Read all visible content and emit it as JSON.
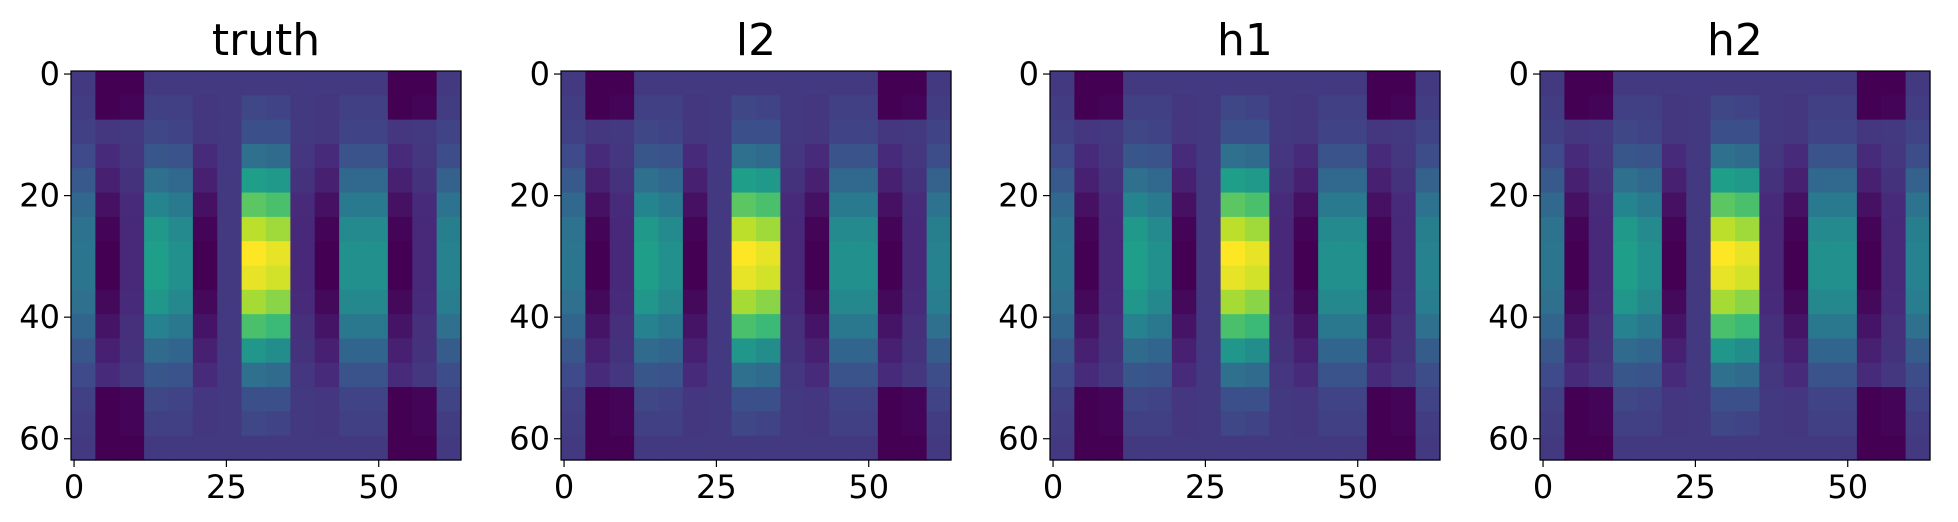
{
  "chart_data": [
    {
      "type": "heatmap",
      "title": "truth",
      "cmap": "viridis",
      "xlim": [
        -0.5,
        63.5
      ],
      "ylim": [
        63.5,
        -0.5
      ],
      "xticks": [
        0,
        25,
        50
      ],
      "yticks": [
        0,
        20,
        40,
        60
      ],
      "z": [
        [
          0.25,
          0.1,
          0.1,
          0.25,
          0.25,
          0.25,
          0.25,
          0.25,
          0.25,
          0.25,
          0.25,
          0.25,
          0.25,
          0.1,
          0.1,
          0.25
        ],
        [
          0.26,
          0.1,
          0.11,
          0.27,
          0.27,
          0.24,
          0.25,
          0.29,
          0.28,
          0.25,
          0.24,
          0.27,
          0.27,
          0.1,
          0.11,
          0.26
        ],
        [
          0.27,
          0.24,
          0.25,
          0.29,
          0.28,
          0.24,
          0.25,
          0.32,
          0.32,
          0.25,
          0.24,
          0.28,
          0.28,
          0.24,
          0.25,
          0.28
        ],
        [
          0.3,
          0.21,
          0.24,
          0.34,
          0.33,
          0.21,
          0.25,
          0.43,
          0.41,
          0.24,
          0.21,
          0.33,
          0.33,
          0.21,
          0.24,
          0.31
        ],
        [
          0.35,
          0.18,
          0.23,
          0.43,
          0.4,
          0.18,
          0.25,
          0.6,
          0.58,
          0.23,
          0.18,
          0.4,
          0.4,
          0.18,
          0.23,
          0.38
        ],
        [
          0.4,
          0.14,
          0.21,
          0.51,
          0.47,
          0.14,
          0.25,
          0.77,
          0.74,
          0.21,
          0.14,
          0.47,
          0.47,
          0.14,
          0.21,
          0.44
        ],
        [
          0.44,
          0.11,
          0.2,
          0.58,
          0.53,
          0.11,
          0.25,
          0.91,
          0.87,
          0.2,
          0.11,
          0.53,
          0.53,
          0.11,
          0.2,
          0.49
        ],
        [
          0.45,
          0.1,
          0.2,
          0.6,
          0.55,
          0.1,
          0.25,
          1.0,
          0.97,
          0.2,
          0.1,
          0.55,
          0.55,
          0.1,
          0.2,
          0.5
        ],
        [
          0.45,
          0.1,
          0.2,
          0.6,
          0.55,
          0.1,
          0.25,
          0.97,
          0.94,
          0.2,
          0.1,
          0.55,
          0.55,
          0.1,
          0.2,
          0.5
        ],
        [
          0.43,
          0.12,
          0.21,
          0.57,
          0.52,
          0.12,
          0.25,
          0.88,
          0.84,
          0.21,
          0.12,
          0.52,
          0.52,
          0.12,
          0.21,
          0.48
        ],
        [
          0.39,
          0.15,
          0.22,
          0.5,
          0.46,
          0.15,
          0.25,
          0.74,
          0.71,
          0.22,
          0.15,
          0.46,
          0.46,
          0.15,
          0.22,
          0.43
        ],
        [
          0.34,
          0.18,
          0.23,
          0.41,
          0.39,
          0.18,
          0.25,
          0.57,
          0.54,
          0.23,
          0.18,
          0.39,
          0.39,
          0.18,
          0.23,
          0.36
        ],
        [
          0.3,
          0.21,
          0.24,
          0.34,
          0.33,
          0.21,
          0.25,
          0.43,
          0.41,
          0.24,
          0.21,
          0.33,
          0.33,
          0.21,
          0.24,
          0.31
        ],
        [
          0.27,
          0.1,
          0.11,
          0.29,
          0.28,
          0.24,
          0.25,
          0.32,
          0.32,
          0.25,
          0.24,
          0.28,
          0.28,
          0.1,
          0.11,
          0.28
        ],
        [
          0.26,
          0.1,
          0.11,
          0.27,
          0.27,
          0.24,
          0.25,
          0.29,
          0.28,
          0.25,
          0.24,
          0.27,
          0.27,
          0.1,
          0.11,
          0.26
        ],
        [
          0.25,
          0.1,
          0.1,
          0.25,
          0.25,
          0.25,
          0.25,
          0.25,
          0.25,
          0.25,
          0.25,
          0.25,
          0.25,
          0.1,
          0.1,
          0.25
        ]
      ]
    },
    {
      "type": "heatmap",
      "title": "l2",
      "cmap": "viridis",
      "xlim": [
        -0.5,
        63.5
      ],
      "ylim": [
        63.5,
        -0.5
      ],
      "xticks": [
        0,
        25,
        50
      ],
      "yticks": [
        0,
        20,
        40,
        60
      ],
      "z": [
        [
          0.25,
          0.1,
          0.1,
          0.25,
          0.25,
          0.25,
          0.25,
          0.25,
          0.25,
          0.25,
          0.25,
          0.25,
          0.25,
          0.1,
          0.1,
          0.25
        ],
        [
          0.26,
          0.1,
          0.11,
          0.27,
          0.27,
          0.24,
          0.25,
          0.29,
          0.28,
          0.25,
          0.24,
          0.27,
          0.27,
          0.1,
          0.11,
          0.26
        ],
        [
          0.27,
          0.24,
          0.25,
          0.29,
          0.28,
          0.24,
          0.25,
          0.32,
          0.32,
          0.25,
          0.24,
          0.28,
          0.28,
          0.24,
          0.25,
          0.28
        ],
        [
          0.3,
          0.21,
          0.24,
          0.34,
          0.33,
          0.21,
          0.25,
          0.43,
          0.41,
          0.24,
          0.21,
          0.33,
          0.33,
          0.21,
          0.24,
          0.31
        ],
        [
          0.35,
          0.18,
          0.23,
          0.43,
          0.4,
          0.18,
          0.25,
          0.6,
          0.58,
          0.23,
          0.18,
          0.4,
          0.4,
          0.18,
          0.23,
          0.38
        ],
        [
          0.4,
          0.14,
          0.21,
          0.51,
          0.47,
          0.14,
          0.25,
          0.77,
          0.74,
          0.21,
          0.14,
          0.47,
          0.47,
          0.14,
          0.21,
          0.44
        ],
        [
          0.44,
          0.11,
          0.2,
          0.58,
          0.53,
          0.11,
          0.25,
          0.91,
          0.87,
          0.2,
          0.11,
          0.53,
          0.53,
          0.11,
          0.2,
          0.49
        ],
        [
          0.45,
          0.1,
          0.2,
          0.6,
          0.55,
          0.1,
          0.25,
          1.0,
          0.97,
          0.2,
          0.1,
          0.55,
          0.55,
          0.1,
          0.2,
          0.5
        ],
        [
          0.45,
          0.1,
          0.2,
          0.6,
          0.55,
          0.1,
          0.25,
          0.97,
          0.94,
          0.2,
          0.1,
          0.55,
          0.55,
          0.1,
          0.2,
          0.5
        ],
        [
          0.43,
          0.12,
          0.21,
          0.57,
          0.52,
          0.12,
          0.25,
          0.88,
          0.84,
          0.21,
          0.12,
          0.52,
          0.52,
          0.12,
          0.21,
          0.48
        ],
        [
          0.39,
          0.15,
          0.22,
          0.5,
          0.46,
          0.15,
          0.25,
          0.74,
          0.71,
          0.22,
          0.15,
          0.46,
          0.46,
          0.15,
          0.22,
          0.43
        ],
        [
          0.34,
          0.18,
          0.23,
          0.41,
          0.39,
          0.18,
          0.25,
          0.57,
          0.54,
          0.23,
          0.18,
          0.39,
          0.39,
          0.18,
          0.23,
          0.36
        ],
        [
          0.3,
          0.21,
          0.24,
          0.34,
          0.33,
          0.21,
          0.25,
          0.43,
          0.41,
          0.24,
          0.21,
          0.33,
          0.33,
          0.21,
          0.24,
          0.31
        ],
        [
          0.27,
          0.1,
          0.11,
          0.29,
          0.28,
          0.24,
          0.25,
          0.32,
          0.32,
          0.25,
          0.24,
          0.28,
          0.28,
          0.1,
          0.11,
          0.28
        ],
        [
          0.26,
          0.1,
          0.11,
          0.27,
          0.27,
          0.24,
          0.25,
          0.29,
          0.28,
          0.25,
          0.24,
          0.27,
          0.27,
          0.1,
          0.11,
          0.26
        ],
        [
          0.25,
          0.1,
          0.1,
          0.25,
          0.25,
          0.25,
          0.25,
          0.25,
          0.25,
          0.25,
          0.25,
          0.25,
          0.25,
          0.1,
          0.1,
          0.25
        ]
      ]
    },
    {
      "type": "heatmap",
      "title": "h1",
      "cmap": "viridis",
      "xlim": [
        -0.5,
        63.5
      ],
      "ylim": [
        63.5,
        -0.5
      ],
      "xticks": [
        0,
        25,
        50
      ],
      "yticks": [
        0,
        20,
        40,
        60
      ],
      "z": [
        [
          0.25,
          0.1,
          0.1,
          0.25,
          0.25,
          0.25,
          0.25,
          0.25,
          0.25,
          0.25,
          0.25,
          0.25,
          0.25,
          0.1,
          0.1,
          0.25
        ],
        [
          0.26,
          0.1,
          0.11,
          0.27,
          0.27,
          0.24,
          0.25,
          0.29,
          0.28,
          0.25,
          0.24,
          0.27,
          0.27,
          0.1,
          0.11,
          0.26
        ],
        [
          0.27,
          0.24,
          0.25,
          0.29,
          0.28,
          0.24,
          0.25,
          0.32,
          0.32,
          0.25,
          0.24,
          0.28,
          0.28,
          0.24,
          0.25,
          0.28
        ],
        [
          0.3,
          0.21,
          0.24,
          0.34,
          0.33,
          0.21,
          0.25,
          0.43,
          0.41,
          0.24,
          0.21,
          0.33,
          0.33,
          0.21,
          0.24,
          0.31
        ],
        [
          0.35,
          0.18,
          0.23,
          0.43,
          0.4,
          0.18,
          0.25,
          0.6,
          0.58,
          0.23,
          0.18,
          0.4,
          0.4,
          0.18,
          0.23,
          0.38
        ],
        [
          0.4,
          0.14,
          0.21,
          0.51,
          0.47,
          0.14,
          0.25,
          0.77,
          0.74,
          0.21,
          0.14,
          0.47,
          0.47,
          0.14,
          0.21,
          0.44
        ],
        [
          0.44,
          0.11,
          0.2,
          0.58,
          0.53,
          0.11,
          0.25,
          0.91,
          0.87,
          0.2,
          0.11,
          0.53,
          0.53,
          0.11,
          0.2,
          0.49
        ],
        [
          0.45,
          0.1,
          0.2,
          0.6,
          0.55,
          0.1,
          0.25,
          1.0,
          0.97,
          0.2,
          0.1,
          0.55,
          0.55,
          0.1,
          0.2,
          0.5
        ],
        [
          0.45,
          0.1,
          0.2,
          0.6,
          0.55,
          0.1,
          0.25,
          0.97,
          0.94,
          0.2,
          0.1,
          0.55,
          0.55,
          0.1,
          0.2,
          0.5
        ],
        [
          0.43,
          0.12,
          0.21,
          0.57,
          0.52,
          0.12,
          0.25,
          0.88,
          0.84,
          0.21,
          0.12,
          0.52,
          0.52,
          0.12,
          0.21,
          0.48
        ],
        [
          0.39,
          0.15,
          0.22,
          0.5,
          0.46,
          0.15,
          0.25,
          0.74,
          0.71,
          0.22,
          0.15,
          0.46,
          0.46,
          0.15,
          0.22,
          0.43
        ],
        [
          0.34,
          0.18,
          0.23,
          0.41,
          0.39,
          0.18,
          0.25,
          0.57,
          0.54,
          0.23,
          0.18,
          0.39,
          0.39,
          0.18,
          0.23,
          0.36
        ],
        [
          0.3,
          0.21,
          0.24,
          0.34,
          0.33,
          0.21,
          0.25,
          0.43,
          0.41,
          0.24,
          0.21,
          0.33,
          0.33,
          0.21,
          0.24,
          0.31
        ],
        [
          0.27,
          0.1,
          0.11,
          0.29,
          0.28,
          0.24,
          0.25,
          0.32,
          0.32,
          0.25,
          0.24,
          0.28,
          0.28,
          0.1,
          0.11,
          0.28
        ],
        [
          0.26,
          0.1,
          0.11,
          0.27,
          0.27,
          0.24,
          0.25,
          0.29,
          0.28,
          0.25,
          0.24,
          0.27,
          0.27,
          0.1,
          0.11,
          0.26
        ],
        [
          0.25,
          0.1,
          0.1,
          0.25,
          0.25,
          0.25,
          0.25,
          0.25,
          0.25,
          0.25,
          0.25,
          0.25,
          0.25,
          0.1,
          0.1,
          0.25
        ]
      ]
    },
    {
      "type": "heatmap",
      "title": "h2",
      "cmap": "viridis",
      "xlim": [
        -0.5,
        63.5
      ],
      "ylim": [
        63.5,
        -0.5
      ],
      "xticks": [
        0,
        25,
        50
      ],
      "yticks": [
        0,
        20,
        40,
        60
      ],
      "z": [
        [
          0.25,
          0.1,
          0.1,
          0.25,
          0.25,
          0.25,
          0.25,
          0.25,
          0.25,
          0.25,
          0.25,
          0.25,
          0.25,
          0.1,
          0.1,
          0.25
        ],
        [
          0.26,
          0.1,
          0.11,
          0.27,
          0.27,
          0.24,
          0.25,
          0.29,
          0.28,
          0.25,
          0.24,
          0.27,
          0.27,
          0.1,
          0.11,
          0.26
        ],
        [
          0.27,
          0.24,
          0.25,
          0.29,
          0.28,
          0.24,
          0.25,
          0.32,
          0.32,
          0.25,
          0.24,
          0.28,
          0.28,
          0.24,
          0.25,
          0.28
        ],
        [
          0.3,
          0.21,
          0.24,
          0.34,
          0.33,
          0.21,
          0.25,
          0.43,
          0.41,
          0.24,
          0.21,
          0.33,
          0.33,
          0.21,
          0.24,
          0.31
        ],
        [
          0.35,
          0.18,
          0.23,
          0.43,
          0.4,
          0.18,
          0.25,
          0.6,
          0.58,
          0.23,
          0.18,
          0.4,
          0.4,
          0.18,
          0.23,
          0.38
        ],
        [
          0.4,
          0.14,
          0.21,
          0.51,
          0.47,
          0.14,
          0.25,
          0.77,
          0.74,
          0.21,
          0.14,
          0.47,
          0.47,
          0.14,
          0.21,
          0.44
        ],
        [
          0.44,
          0.11,
          0.2,
          0.58,
          0.53,
          0.11,
          0.25,
          0.91,
          0.87,
          0.2,
          0.11,
          0.53,
          0.53,
          0.11,
          0.2,
          0.49
        ],
        [
          0.45,
          0.1,
          0.2,
          0.6,
          0.55,
          0.1,
          0.25,
          1.0,
          0.97,
          0.2,
          0.1,
          0.55,
          0.55,
          0.1,
          0.2,
          0.5
        ],
        [
          0.45,
          0.1,
          0.2,
          0.6,
          0.55,
          0.1,
          0.25,
          0.97,
          0.94,
          0.2,
          0.1,
          0.55,
          0.55,
          0.1,
          0.2,
          0.5
        ],
        [
          0.43,
          0.12,
          0.21,
          0.57,
          0.52,
          0.12,
          0.25,
          0.88,
          0.84,
          0.21,
          0.12,
          0.52,
          0.52,
          0.12,
          0.21,
          0.48
        ],
        [
          0.39,
          0.15,
          0.22,
          0.5,
          0.46,
          0.15,
          0.25,
          0.74,
          0.71,
          0.22,
          0.15,
          0.46,
          0.46,
          0.15,
          0.22,
          0.43
        ],
        [
          0.34,
          0.18,
          0.23,
          0.41,
          0.39,
          0.18,
          0.25,
          0.57,
          0.54,
          0.23,
          0.18,
          0.39,
          0.39,
          0.18,
          0.23,
          0.36
        ],
        [
          0.3,
          0.21,
          0.24,
          0.34,
          0.33,
          0.21,
          0.25,
          0.43,
          0.41,
          0.24,
          0.21,
          0.33,
          0.33,
          0.21,
          0.24,
          0.31
        ],
        [
          0.27,
          0.1,
          0.11,
          0.29,
          0.28,
          0.24,
          0.25,
          0.32,
          0.32,
          0.25,
          0.24,
          0.28,
          0.28,
          0.1,
          0.11,
          0.28
        ],
        [
          0.26,
          0.1,
          0.11,
          0.27,
          0.27,
          0.24,
          0.25,
          0.29,
          0.28,
          0.25,
          0.24,
          0.27,
          0.27,
          0.1,
          0.11,
          0.26
        ],
        [
          0.25,
          0.1,
          0.1,
          0.25,
          0.25,
          0.25,
          0.25,
          0.25,
          0.25,
          0.25,
          0.25,
          0.25,
          0.25,
          0.1,
          0.1,
          0.25
        ]
      ]
    }
  ]
}
